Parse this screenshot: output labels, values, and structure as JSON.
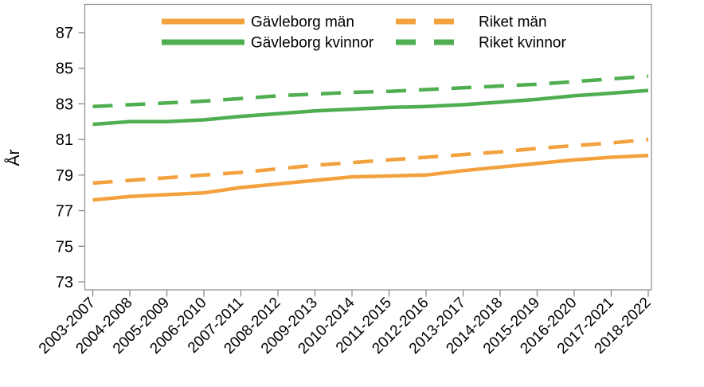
{
  "chart_data": {
    "type": "line",
    "title": "",
    "xlabel": "",
    "ylabel": "År",
    "grid": false,
    "legend_position": "top-inside-two-columns",
    "categories": [
      "2003-2007",
      "2004-2008",
      "2005-2009",
      "2006-2010",
      "2007-2011",
      "2008-2012",
      "2009-2013",
      "2010-2014",
      "2011-2015",
      "2012-2016",
      "2013-2017",
      "2014-2018",
      "2015-2019",
      "2016-2020",
      "2017-2021",
      "2018-2022"
    ],
    "y_axis": {
      "min": 72.5,
      "max": 88.9,
      "ticks": [
        73,
        75,
        77,
        79,
        81,
        83,
        85,
        87
      ]
    },
    "series": [
      {
        "name": "Gävleborg män",
        "color": "#F2A13D",
        "style": "solid",
        "values": [
          77.6,
          77.8,
          77.9,
          78.0,
          78.3,
          78.5,
          78.7,
          78.9,
          78.95,
          79.0,
          79.25,
          79.45,
          79.65,
          79.85,
          80.0,
          80.1
        ]
      },
      {
        "name": "Gävleborg kvinnor",
        "color": "#4FAE50",
        "style": "solid",
        "values": [
          81.85,
          82.0,
          82.0,
          82.1,
          82.3,
          82.45,
          82.6,
          82.7,
          82.8,
          82.85,
          82.95,
          83.1,
          83.25,
          83.45,
          83.6,
          83.75
        ]
      },
      {
        "name": "Riket män",
        "color": "#F2A13D",
        "style": "dashed",
        "values": [
          78.55,
          78.7,
          78.85,
          79.0,
          79.15,
          79.35,
          79.55,
          79.7,
          79.85,
          80.0,
          80.15,
          80.3,
          80.5,
          80.65,
          80.8,
          81.0
        ]
      },
      {
        "name": "Riket kvinnor",
        "color": "#4FAE50",
        "style": "dashed",
        "values": [
          82.85,
          82.95,
          83.05,
          83.15,
          83.3,
          83.45,
          83.55,
          83.65,
          83.7,
          83.8,
          83.9,
          84.0,
          84.1,
          84.25,
          84.4,
          84.55
        ]
      }
    ],
    "colors": {
      "orange": "#F2A13D",
      "green": "#4FAE50",
      "axis": "#8C8C8C",
      "text": "#000000"
    }
  }
}
